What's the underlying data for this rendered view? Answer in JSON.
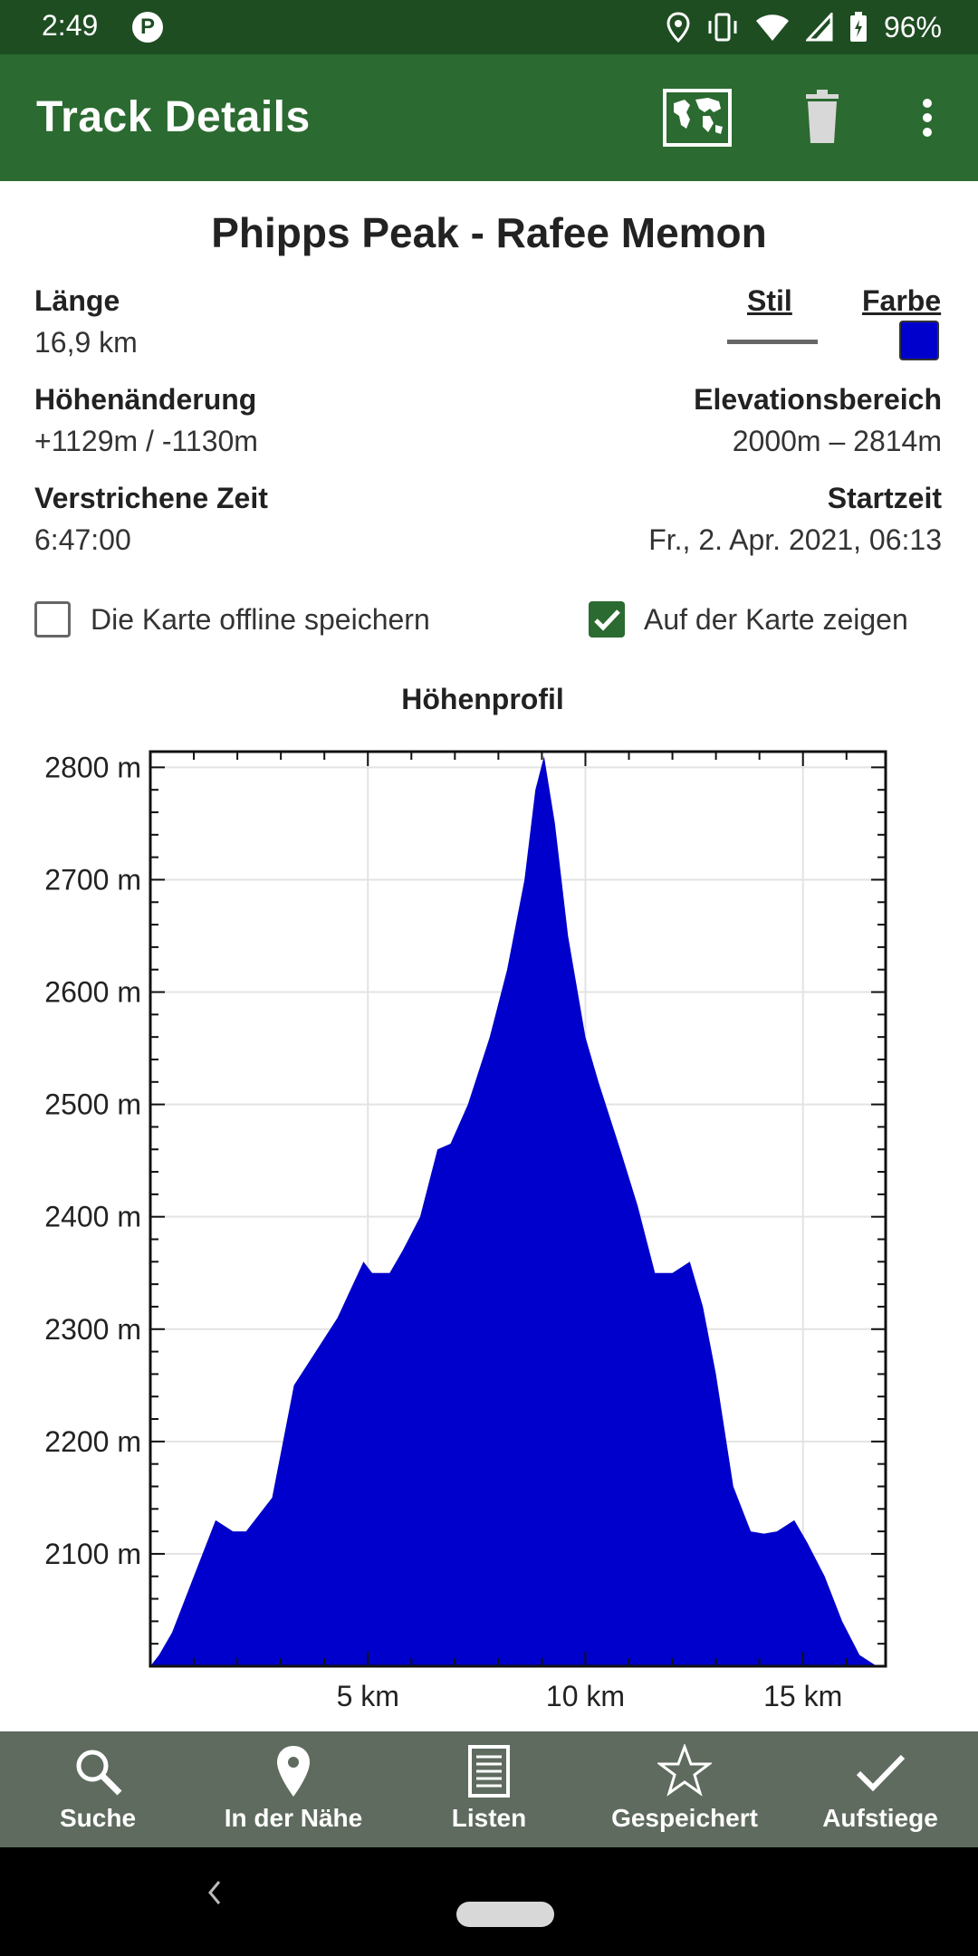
{
  "status_bar": {
    "time": "2:49",
    "battery": "96%"
  },
  "app_bar": {
    "title": "Track Details"
  },
  "track": {
    "name": "Phipps Peak - Rafee Memon",
    "length_label": "Länge",
    "length_value": "16,9 km",
    "style_label": "Stil",
    "color_label": "Farbe",
    "track_color": "#0000cc",
    "elevation_change_label": "Höhenänderung",
    "elevation_change_value": "+1129m / -1130m",
    "elevation_range_label": "Elevationsbereich",
    "elevation_range_value": "2000m – 2814m",
    "elapsed_label": "Verstrichene Zeit",
    "elapsed_value": "6:47:00",
    "start_label": "Startzeit",
    "start_value": "Fr., 2. Apr. 2021, 06:13"
  },
  "options": {
    "offline": {
      "label": "Die Karte offline speichern",
      "checked": false
    },
    "show_on_map": {
      "label": "Auf der Karte zeigen",
      "checked": true
    }
  },
  "chart_data": {
    "type": "area",
    "title": "Höhenprofil",
    "xlabel": "",
    "ylabel": "",
    "color": "#0000cc",
    "xlim": [
      0,
      16.9
    ],
    "ylim": [
      2000,
      2814
    ],
    "x_ticks": [
      5,
      10,
      15
    ],
    "x_tick_labels": [
      "5 km",
      "10 km",
      "15 km"
    ],
    "y_ticks": [
      2100,
      2200,
      2300,
      2400,
      2500,
      2600,
      2700,
      2800
    ],
    "y_tick_labels": [
      "2100 m",
      "2200 m",
      "2300 m",
      "2400 m",
      "2500 m",
      "2600 m",
      "2700 m",
      "2800 m"
    ],
    "grid": true,
    "x": [
      0,
      0.2,
      0.5,
      1.0,
      1.5,
      1.9,
      2.2,
      2.5,
      2.8,
      3.3,
      3.8,
      4.3,
      4.6,
      4.9,
      5.1,
      5.5,
      5.8,
      6.2,
      6.6,
      6.9,
      7.3,
      7.8,
      8.2,
      8.6,
      8.85,
      9.05,
      9.3,
      9.6,
      10.0,
      10.3,
      10.8,
      11.2,
      11.6,
      12.0,
      12.4,
      12.7,
      13.0,
      13.4,
      13.8,
      14.1,
      14.4,
      14.8,
      15.1,
      15.5,
      15.9,
      16.3,
      16.7,
      16.9
    ],
    "y": [
      2000,
      2010,
      2030,
      2080,
      2130,
      2120,
      2120,
      2135,
      2150,
      2250,
      2280,
      2310,
      2335,
      2360,
      2350,
      2350,
      2370,
      2400,
      2460,
      2465,
      2500,
      2560,
      2620,
      2700,
      2780,
      2810,
      2750,
      2650,
      2560,
      2520,
      2460,
      2410,
      2350,
      2350,
      2360,
      2320,
      2260,
      2160,
      2120,
      2118,
      2120,
      2130,
      2110,
      2080,
      2040,
      2010,
      2000,
      2000
    ]
  },
  "bottom_nav": [
    {
      "label": "Suche",
      "icon": "search-icon"
    },
    {
      "label": "In der Nähe",
      "icon": "location-pin-icon"
    },
    {
      "label": "Listen",
      "icon": "list-icon"
    },
    {
      "label": "Gespeichert",
      "icon": "star-icon"
    },
    {
      "label": "Aufstiege",
      "icon": "checkmark-icon"
    }
  ]
}
